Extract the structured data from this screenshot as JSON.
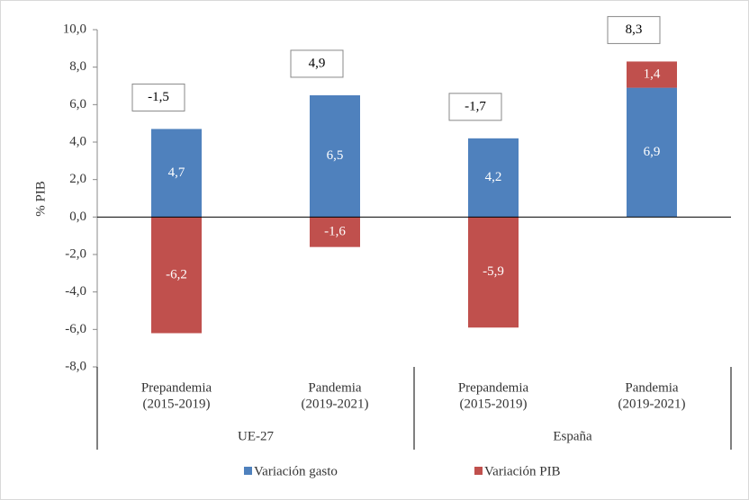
{
  "chart_data": {
    "type": "bar",
    "stacked": true,
    "y_label": "% PIB",
    "categories": [
      [
        "Prepandemia",
        "(2015-2019)"
      ],
      [
        "Pandemia",
        "(2019-2021)"
      ],
      [
        "Prepandemia",
        "(2015-2019)"
      ],
      [
        "Pandemia",
        "(2019-2021)"
      ]
    ],
    "groups": [
      "UE-27",
      "España"
    ],
    "series": [
      {
        "name": "Variación gasto",
        "color": "#4f81bd",
        "values": [
          4.7,
          6.5,
          4.2,
          6.9
        ],
        "value_labels": [
          "4,7",
          "6,5",
          "4,2",
          "6,9"
        ]
      },
      {
        "name": "Variación PIB",
        "color": "#c0504d",
        "values": [
          -6.2,
          -1.6,
          -5.9,
          1.4
        ],
        "value_labels": [
          "-6,2",
          "-1,6",
          "-5,9",
          "1,4"
        ]
      }
    ],
    "totals": {
      "values": [
        -1.5,
        4.9,
        -1.7,
        8.3
      ],
      "value_labels": [
        "-1,5",
        "4,9",
        "-1,7",
        "8,3"
      ]
    },
    "ylim": [
      -8,
      10
    ],
    "yticks": [
      {
        "value": -8,
        "label": "-8,0"
      },
      {
        "value": -6,
        "label": "-6,0"
      },
      {
        "value": -4,
        "label": "-4,0"
      },
      {
        "value": -2,
        "label": "-2,0"
      },
      {
        "value": 0,
        "label": "0,0"
      },
      {
        "value": 2,
        "label": "2,0"
      },
      {
        "value": 4,
        "label": "4,0"
      },
      {
        "value": 6,
        "label": "6,0"
      },
      {
        "value": 8,
        "label": "8,0"
      },
      {
        "value": 10,
        "label": "10,0"
      }
    ],
    "legend": "bottom"
  }
}
